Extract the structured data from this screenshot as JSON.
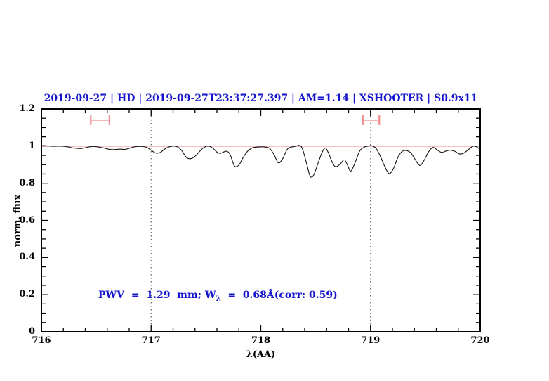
{
  "annotation": {
    "text": "PWV = 1.29 mm; W_λ = 0.68Å(corr: 0.59)",
    "part1": "PWV  =  1.29  mm; W",
    "sub": "λ",
    "part2": "  =  0.68Å(corr: 0.59)"
  },
  "chart_data": {
    "type": "line",
    "title": "2019-09-27 | HD | 2019-09-27T23:37:27.397 | AM=1.14 | XSHOOTER | S0.9x11",
    "xlabel": "λ(AA)",
    "ylabel": "norm. flux",
    "xlim": [
      716,
      720
    ],
    "ylim": [
      0,
      1.2
    ],
    "grid": "off",
    "legend": "none",
    "x_major_ticks": [
      716,
      717,
      718,
      719,
      720
    ],
    "x_tick_labels": [
      "716",
      "717",
      "718",
      "719",
      "720"
    ],
    "x_minor_step": 0.2,
    "y_major_ticks": [
      0,
      0.2,
      0.4,
      0.6,
      0.8,
      1.0,
      1.2
    ],
    "y_tick_labels": [
      "0",
      "0.2",
      "0.4",
      "0.6",
      "0.8",
      "1",
      "1.2"
    ],
    "y_minor_step": 0.05,
    "dotted_vlines": [
      717,
      719
    ],
    "continuum_line_y": 1.0,
    "colors": {
      "spectrum": "#111111",
      "continuum": "#dd5f5f",
      "marker": "#f08d8d",
      "title": "#1414cc",
      "annotation": "#1414cc"
    },
    "range_markers": [
      {
        "x_start": 716.45,
        "x_end": 716.62,
        "y": 1.14,
        "cap_halfheight": 0.027
      },
      {
        "x_start": 718.93,
        "x_end": 719.08,
        "y": 1.14,
        "cap_halfheight": 0.027
      }
    ],
    "series": [
      {
        "name": "telluric-spectrum",
        "points": [
          [
            716.0,
            1.003
          ],
          [
            716.04,
            1.002
          ],
          [
            716.08,
            1.0
          ],
          [
            716.12,
            0.999
          ],
          [
            716.16,
            1.0
          ],
          [
            716.2,
            0.999
          ],
          [
            716.24,
            0.996
          ],
          [
            716.28,
            0.991
          ],
          [
            716.32,
            0.988
          ],
          [
            716.36,
            0.987
          ],
          [
            716.4,
            0.991
          ],
          [
            716.44,
            0.996
          ],
          [
            716.48,
            0.998
          ],
          [
            716.52,
            0.995
          ],
          [
            716.56,
            0.991
          ],
          [
            716.6,
            0.985
          ],
          [
            716.64,
            0.981
          ],
          [
            716.68,
            0.982
          ],
          [
            716.72,
            0.984
          ],
          [
            716.76,
            0.982
          ],
          [
            716.8,
            0.988
          ],
          [
            716.84,
            0.995
          ],
          [
            716.88,
            0.998
          ],
          [
            716.92,
            0.998
          ],
          [
            716.96,
            0.993
          ],
          [
            717.0,
            0.978
          ],
          [
            717.04,
            0.963
          ],
          [
            717.08,
            0.965
          ],
          [
            717.12,
            0.982
          ],
          [
            717.16,
            0.995
          ],
          [
            717.2,
            1.0
          ],
          [
            717.24,
            0.996
          ],
          [
            717.28,
            0.975
          ],
          [
            717.32,
            0.94
          ],
          [
            717.36,
            0.932
          ],
          [
            717.4,
            0.945
          ],
          [
            717.44,
            0.97
          ],
          [
            717.48,
            0.992
          ],
          [
            717.52,
            1.0
          ],
          [
            717.56,
            0.99
          ],
          [
            717.6,
            0.968
          ],
          [
            717.63,
            0.961
          ],
          [
            717.66,
            0.968
          ],
          [
            717.69,
            0.972
          ],
          [
            717.72,
            0.955
          ],
          [
            717.76,
            0.893
          ],
          [
            717.8,
            0.898
          ],
          [
            717.84,
            0.94
          ],
          [
            717.88,
            0.973
          ],
          [
            717.92,
            0.99
          ],
          [
            717.96,
            0.995
          ],
          [
            718.0,
            0.996
          ],
          [
            718.04,
            0.995
          ],
          [
            718.08,
            0.988
          ],
          [
            718.12,
            0.955
          ],
          [
            718.16,
            0.91
          ],
          [
            718.2,
            0.933
          ],
          [
            718.24,
            0.982
          ],
          [
            718.28,
            0.995
          ],
          [
            718.32,
            0.999
          ],
          [
            718.35,
            1.004
          ],
          [
            718.38,
            0.985
          ],
          [
            718.42,
            0.9
          ],
          [
            718.45,
            0.838
          ],
          [
            718.48,
            0.842
          ],
          [
            718.52,
            0.905
          ],
          [
            718.56,
            0.968
          ],
          [
            718.59,
            0.99
          ],
          [
            718.62,
            0.958
          ],
          [
            718.65,
            0.915
          ],
          [
            718.68,
            0.889
          ],
          [
            718.72,
            0.901
          ],
          [
            718.76,
            0.926
          ],
          [
            718.79,
            0.898
          ],
          [
            718.82,
            0.865
          ],
          [
            718.86,
            0.912
          ],
          [
            718.9,
            0.972
          ],
          [
            718.94,
            0.994
          ],
          [
            718.98,
            1.0
          ],
          [
            719.01,
            1.002
          ],
          [
            719.05,
            0.988
          ],
          [
            719.09,
            0.945
          ],
          [
            719.13,
            0.89
          ],
          [
            719.17,
            0.852
          ],
          [
            719.21,
            0.88
          ],
          [
            719.25,
            0.94
          ],
          [
            719.29,
            0.972
          ],
          [
            719.33,
            0.976
          ],
          [
            719.37,
            0.962
          ],
          [
            719.41,
            0.925
          ],
          [
            719.45,
            0.896
          ],
          [
            719.49,
            0.925
          ],
          [
            719.53,
            0.97
          ],
          [
            719.57,
            0.993
          ],
          [
            719.61,
            0.978
          ],
          [
            719.65,
            0.966
          ],
          [
            719.69,
            0.974
          ],
          [
            719.73,
            0.978
          ],
          [
            719.77,
            0.972
          ],
          [
            719.81,
            0.958
          ],
          [
            719.85,
            0.962
          ],
          [
            719.89,
            0.98
          ],
          [
            719.93,
            0.998
          ],
          [
            719.96,
            0.998
          ],
          [
            720.0,
            0.982
          ]
        ]
      }
    ]
  }
}
